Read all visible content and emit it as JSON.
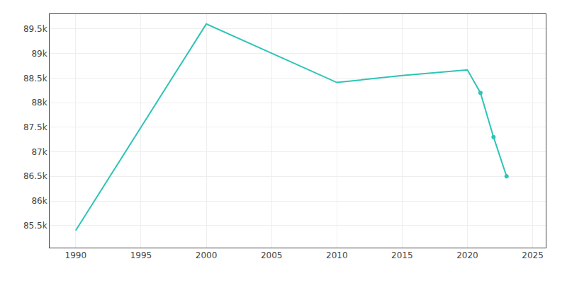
{
  "chart_data": {
    "type": "line",
    "x": [
      1990,
      2000,
      2010,
      2015,
      2020,
      2021,
      2022,
      2023
    ],
    "series": [
      {
        "type": "line",
        "color": "#2ec4b6",
        "values": [
          85400,
          89600,
          88410,
          88550,
          88665,
          88200,
          87300,
          86500
        ]
      },
      {
        "type": "scatter",
        "color": "#2ec4b6",
        "marker": "circle",
        "values": [
          null,
          null,
          null,
          null,
          null,
          88200,
          87300,
          86500
        ]
      }
    ],
    "xlim": [
      1988,
      2026
    ],
    "xticks": [
      1990,
      1995,
      2000,
      2005,
      2010,
      2015,
      2020,
      2025
    ],
    "ylim": [
      85050,
      89800
    ],
    "yticks": [
      {
        "value": 85500,
        "label": "85.5k"
      },
      {
        "value": 86000,
        "label": "86k"
      },
      {
        "value": 86500,
        "label": "86.5k"
      },
      {
        "value": 87000,
        "label": "87k"
      },
      {
        "value": 87500,
        "label": "87.5k"
      },
      {
        "value": 88000,
        "label": "88k"
      },
      {
        "value": 88500,
        "label": "88.5k"
      },
      {
        "value": 89000,
        "label": "89k"
      },
      {
        "value": 89500,
        "label": "89.5k"
      }
    ],
    "grid": true
  }
}
